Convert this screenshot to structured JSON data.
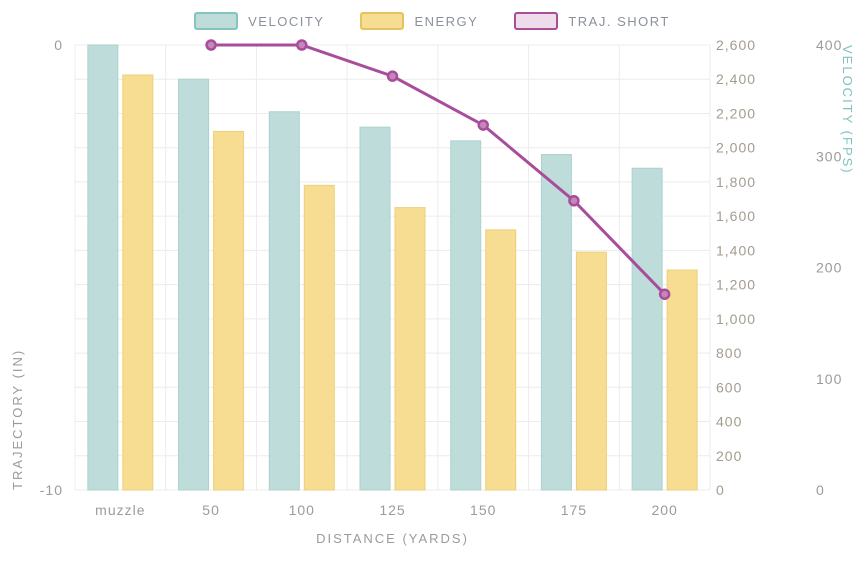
{
  "legend": {
    "items": [
      {
        "label": "VELOCITY",
        "type": "bar",
        "fill": "#bedcd9",
        "stroke": "#85c3bd"
      },
      {
        "label": "ENERGY",
        "type": "bar",
        "fill": "#f6dd92",
        "stroke": "#e5c360"
      },
      {
        "label": "TRAJ. SHORT",
        "type": "line",
        "fill": "#eedcea",
        "stroke": "#a84d9b"
      }
    ]
  },
  "chart_data": {
    "type": "bar",
    "categories": [
      "muzzle",
      "50",
      "100",
      "125",
      "150",
      "175",
      "200"
    ],
    "series": [
      {
        "name": "VELOCITY",
        "type": "bar",
        "axis": "inner_right",
        "fill": "#bedcd9",
        "stroke": "#abd2ce",
        "values": [
          2600,
          2400,
          2210,
          2120,
          2040,
          1960,
          1880
        ]
      },
      {
        "name": "ENERGY",
        "type": "bar",
        "axis": "inner_right",
        "fill": "#f6dd92",
        "stroke": "#ecd07a",
        "values": [
          2425,
          2095,
          1780,
          1650,
          1520,
          1390,
          1285
        ]
      },
      {
        "name": "TRAJ. SHORT",
        "type": "line",
        "axis": "left",
        "color": "#a84d9b",
        "marker_fill": "#c687b8",
        "values": [
          null,
          0,
          0,
          -0.7,
          -1.8,
          -3.5,
          -5.6
        ]
      }
    ],
    "axes": {
      "left": {
        "label": "TRAJECTORY (IN)",
        "min": -10,
        "max": 0,
        "ticks": [
          0,
          -10
        ]
      },
      "inner_right": {
        "label": "",
        "min": 0,
        "max": 2600,
        "ticks": [
          0,
          200,
          400,
          600,
          800,
          1000,
          1200,
          1400,
          1600,
          1800,
          2000,
          2200,
          2400,
          2600
        ]
      },
      "outer_right": {
        "label": "VELOCITY (FPS)",
        "min": 0,
        "max": 400,
        "ticks": [
          0,
          100,
          200,
          300,
          400
        ]
      },
      "x": {
        "label": "DISTANCE (YARDS)"
      }
    },
    "grid": true,
    "legend_position": "top"
  },
  "colors": {
    "grid": "#ececec",
    "tick_text": "#9b9b9b",
    "inner_tick_text": "#a49c8e",
    "velocity_axis_text": "#7fc3bd"
  }
}
